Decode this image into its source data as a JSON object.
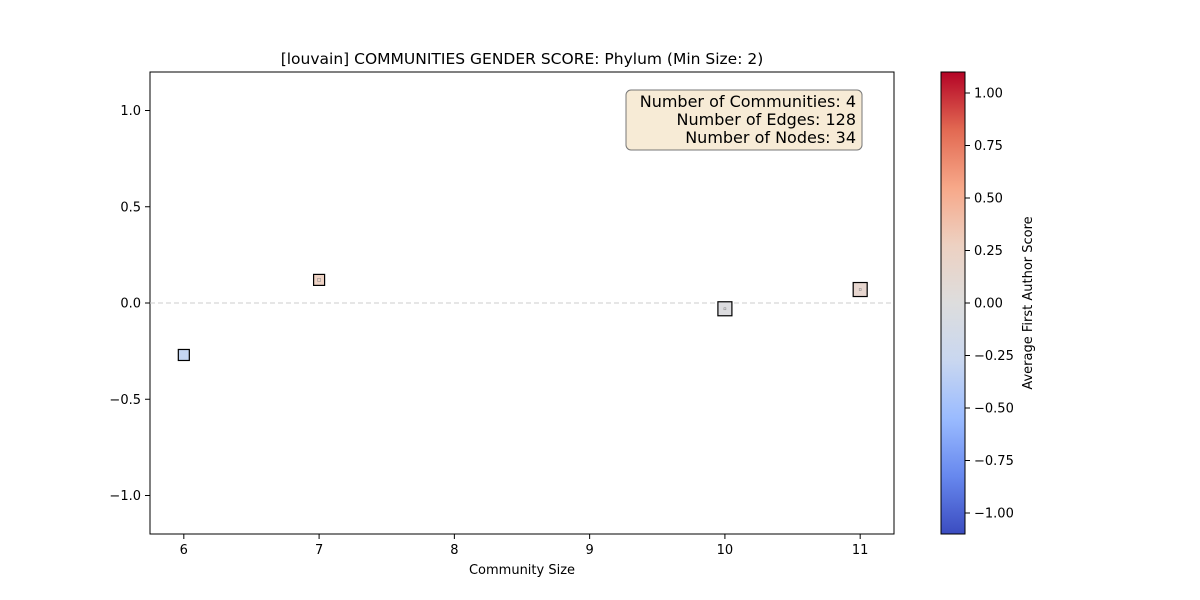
{
  "chart_data": {
    "type": "scatter",
    "title": "[louvain] COMMUNITIES GENDER SCORE: Phylum (Min Size: 2)",
    "xlabel": "Community Size",
    "ylabel": "",
    "xlim": [
      5.75,
      11.25
    ],
    "ylim": [
      -1.2,
      1.2
    ],
    "x_ticks": [
      6,
      7,
      8,
      9,
      10,
      11
    ],
    "x_tick_labels": [
      "6",
      "7",
      "8",
      "9",
      "10",
      "11"
    ],
    "y_ticks": [
      1.0,
      0.5,
      0.0,
      -0.5,
      -1.0
    ],
    "y_tick_labels": [
      "1.0",
      "0.5",
      "0.0",
      "−0.5",
      "−1.0"
    ],
    "reference_line": {
      "y": 0.0,
      "style": "dashed",
      "color": "#cccccc"
    },
    "grid": false,
    "points": [
      {
        "x": 6,
        "y": -0.27,
        "color_value": -0.27,
        "fill": "#c5d6f2"
      },
      {
        "x": 7,
        "y": 0.12,
        "color_value": 0.12,
        "fill": "#eed2c4",
        "marker": "small-square"
      },
      {
        "x": 10,
        "y": -0.03,
        "color_value": -0.03,
        "fill": "#dcdcdf",
        "marker": "square"
      },
      {
        "x": 11,
        "y": 0.07,
        "color_value": 0.07,
        "fill": "#e7d6cf",
        "marker": "square"
      }
    ],
    "info_box": {
      "lines": [
        "Number of Communities: 4",
        "Number of Edges: 128",
        "Number of Nodes: 34"
      ],
      "placement": "top-right",
      "background": "#f7ebd6",
      "border": "#777777"
    },
    "colorbar": {
      "label": "Average First Author Score",
      "cmap": "coolwarm",
      "range": [
        -1.1,
        1.1
      ],
      "ticks": [
        1.0,
        0.75,
        0.5,
        0.25,
        0.0,
        -0.25,
        -0.5,
        -0.75,
        -1.0
      ],
      "tick_labels": [
        "1.00",
        "0.75",
        "0.50",
        "0.25",
        "0.00",
        "−0.25",
        "−0.50",
        "−0.75",
        "−1.00"
      ],
      "stops": [
        "#3b4cc0",
        "#6788ee",
        "#9abbff",
        "#c9d7f0",
        "#dddddd",
        "#edd1c2",
        "#f7a889",
        "#e26952",
        "#b40426"
      ]
    }
  }
}
